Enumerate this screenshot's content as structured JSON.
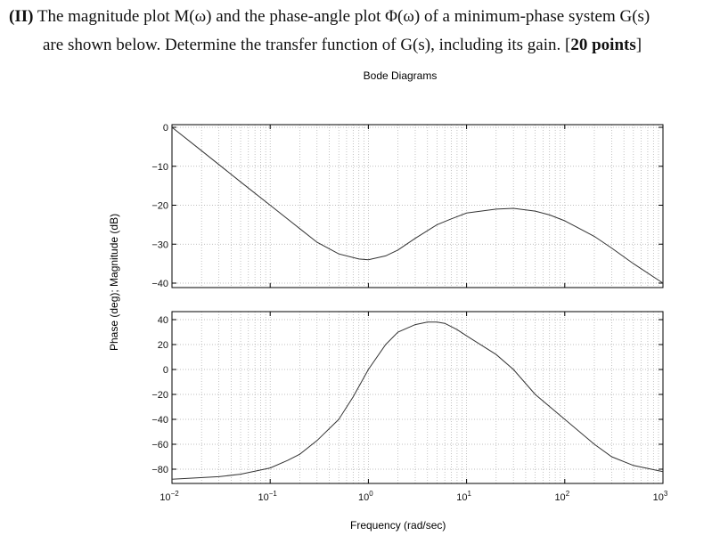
{
  "question": {
    "number": "(II)",
    "line1": " The magnitude plot M(ω) and the phase-angle plot Φ(ω) of a minimum-phase system G(s)",
    "line2_a": "are shown below. Determine the transfer function of G(s), including its gain. [",
    "points": "20 points",
    "line2_b": "]"
  },
  "chart_data": [
    {
      "type": "line",
      "title": "Bode Diagrams",
      "panel": "magnitude",
      "xlabel": "Frequency (rad/sec)",
      "ylabel": "Phase (deg); Magnitude (dB)",
      "xscale": "log",
      "xlim": [
        0.01,
        1000
      ],
      "ylim": [
        -41,
        1
      ],
      "yticks": [
        "0",
        "−10",
        "−20",
        "−30",
        "−40"
      ],
      "ytick_values": [
        0,
        -10,
        -20,
        -30,
        -40
      ],
      "grid": true,
      "x": [
        0.01,
        0.02,
        0.05,
        0.1,
        0.2,
        0.3,
        0.5,
        0.8,
        1.0,
        1.5,
        2,
        3,
        5,
        7,
        10,
        20,
        30,
        50,
        70,
        100,
        200,
        300,
        500,
        1000
      ],
      "y": [
        0,
        -6,
        -14,
        -20,
        -26,
        -29.5,
        -32.5,
        -33.8,
        -34,
        -33,
        -31.5,
        -28.5,
        -25,
        -23.5,
        -22,
        -21,
        -20.8,
        -21.5,
        -22.5,
        -24,
        -28,
        -31,
        -35,
        -40
      ]
    },
    {
      "type": "line",
      "panel": "phase",
      "xscale": "log",
      "xlim": [
        0.01,
        1000
      ],
      "ylim": [
        -92,
        43
      ],
      "yticks": [
        "40",
        "20",
        "0",
        "−20",
        "−40",
        "−60",
        "−80"
      ],
      "ytick_values": [
        40,
        20,
        0,
        -20,
        -40,
        -60,
        -80
      ],
      "xticks": [
        {
          "base": "10",
          "exp": "−2"
        },
        {
          "base": "10",
          "exp": "−1"
        },
        {
          "base": "10",
          "exp": "0"
        },
        {
          "base": "10",
          "exp": "1"
        },
        {
          "base": "10",
          "exp": "2"
        },
        {
          "base": "10",
          "exp": "3"
        }
      ],
      "grid": true,
      "x": [
        0.01,
        0.03,
        0.05,
        0.1,
        0.15,
        0.2,
        0.3,
        0.5,
        0.7,
        1,
        1.5,
        2,
        3,
        4,
        5,
        6,
        8,
        10,
        20,
        30,
        50,
        100,
        200,
        300,
        500,
        1000
      ],
      "y": [
        -88,
        -86,
        -84,
        -79,
        -73,
        -68,
        -57,
        -40,
        -22,
        0,
        20,
        30,
        36,
        38,
        38,
        37,
        32,
        27,
        12,
        0,
        -20,
        -40,
        -60,
        -70,
        -77,
        -82
      ]
    }
  ]
}
